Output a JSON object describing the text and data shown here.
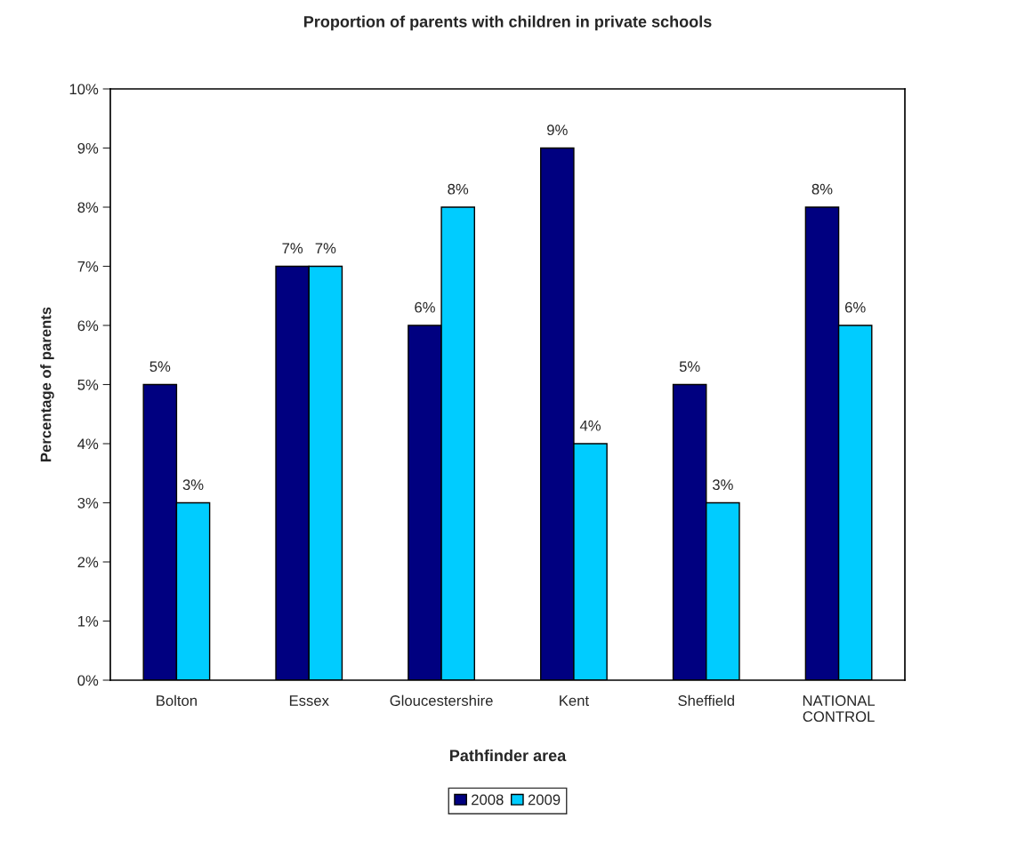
{
  "chart_data": {
    "type": "bar",
    "title": "Proportion of parents with children in private schools",
    "xlabel": "Pathfinder area",
    "ylabel": "Percentage of parents",
    "categories": [
      "Bolton",
      "Essex",
      "Gloucestershire",
      "Kent",
      "Sheffield",
      "NATIONAL\nCONTROL"
    ],
    "series": [
      {
        "name": "2008",
        "color": "#000080",
        "values": [
          5,
          7,
          6,
          9,
          5,
          8
        ],
        "value_labels": [
          "5%",
          "7%",
          "6%",
          "9%",
          "5%",
          "8%"
        ]
      },
      {
        "name": "2009",
        "color": "#00ccff",
        "values": [
          3,
          7,
          8,
          4,
          3,
          6
        ],
        "value_labels": [
          "3%",
          "7%",
          "8%",
          "4%",
          "3%",
          "6%"
        ]
      }
    ],
    "ylim": [
      0,
      10
    ],
    "yticks": [
      {
        "value": 0,
        "label": "0%"
      },
      {
        "value": 1,
        "label": "1%"
      },
      {
        "value": 2,
        "label": "2%"
      },
      {
        "value": 3,
        "label": "3%"
      },
      {
        "value": 4,
        "label": "4%"
      },
      {
        "value": 5,
        "label": "5%"
      },
      {
        "value": 6,
        "label": "6%"
      },
      {
        "value": 7,
        "label": "7%"
      },
      {
        "value": 8,
        "label": "8%"
      },
      {
        "value": 9,
        "label": "9%"
      },
      {
        "value": 10,
        "label": "10%"
      }
    ],
    "legend": "bottom",
    "grid": false
  }
}
